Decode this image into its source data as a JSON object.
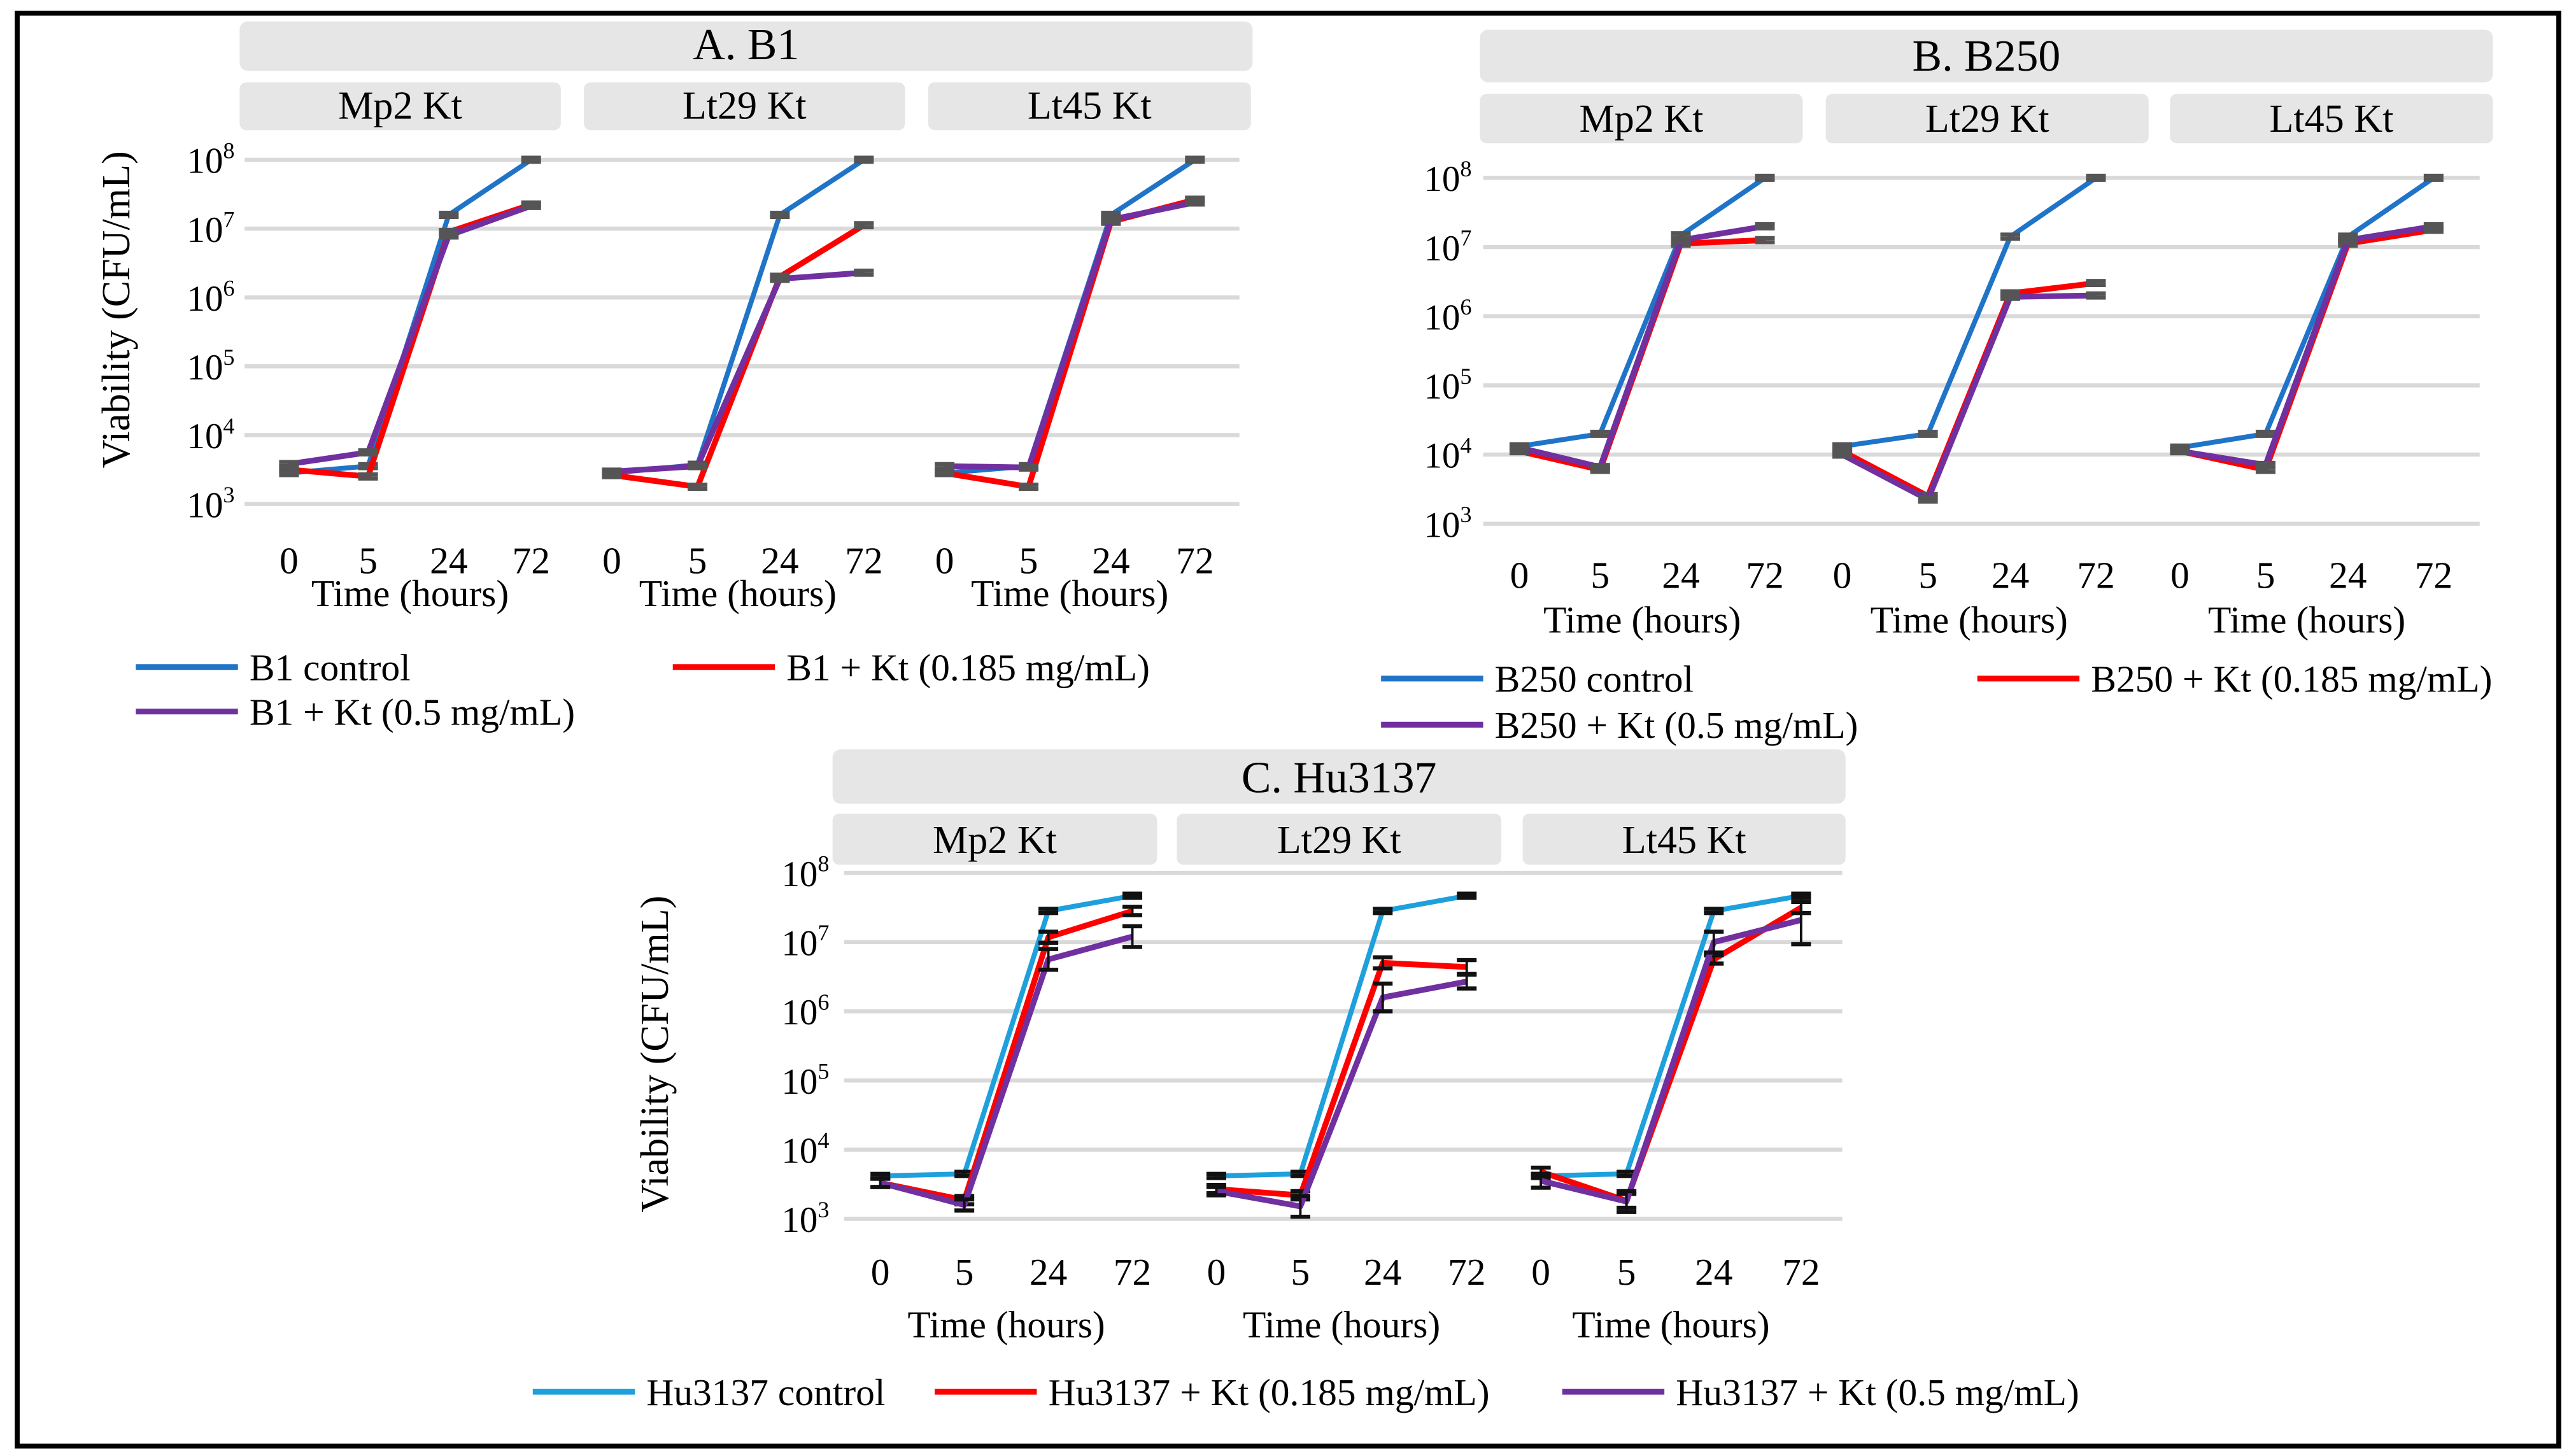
{
  "chart_data": [
    {
      "type": "line",
      "title": "A. B1",
      "ylabel": "Viability (CFU/mL)",
      "xlabel": "Time (hours)",
      "yscale": "log10",
      "ylim_log10": [
        3,
        8
      ],
      "ytick_labels": [
        {
          "base": "10",
          "exp": "3"
        },
        {
          "base": "10",
          "exp": "4"
        },
        {
          "base": "10",
          "exp": "5"
        },
        {
          "base": "10",
          "exp": "6"
        },
        {
          "base": "10",
          "exp": "7"
        },
        {
          "base": "10",
          "exp": "8"
        }
      ],
      "categories": [
        "0",
        "5",
        "24",
        "72"
      ],
      "grid": true,
      "legend": {
        "placement": "bottom",
        "labels": [
          "B1 control",
          "B1 + Kt (0.185 mg/mL)",
          "B1 + Kt (0.5 mg/mL)"
        ]
      },
      "facets": [
        {
          "label": "Mp2 Kt",
          "series": [
            {
              "name": "B1 control",
              "color": "#1f74c8",
              "log10_values": [
                3.45,
                3.55,
                7.2,
                8.0
              ]
            },
            {
              "name": "B1 + Kt (0.185 mg/mL)",
              "color": "#ff0000",
              "log10_values": [
                3.5,
                3.4,
                6.95,
                7.35
              ]
            },
            {
              "name": "B1 + Kt (0.5 mg/mL)",
              "color": "#7030a0",
              "log10_values": [
                3.58,
                3.75,
                6.9,
                7.33
              ]
            }
          ]
        },
        {
          "label": "Lt29 Kt",
          "series": [
            {
              "name": "B1 control",
              "color": "#1f74c8",
              "log10_values": [
                3.45,
                3.57,
                7.2,
                8.0
              ]
            },
            {
              "name": "B1 + Kt (0.185 mg/mL)",
              "color": "#ff0000",
              "log10_values": [
                3.42,
                3.25,
                6.3,
                7.05
              ]
            },
            {
              "name": "B1 + Kt (0.5 mg/mL)",
              "color": "#7030a0",
              "log10_values": [
                3.47,
                3.55,
                6.27,
                6.36
              ]
            }
          ]
        },
        {
          "label": "Lt45 Kt",
          "series": [
            {
              "name": "B1 control",
              "color": "#1f74c8",
              "log10_values": [
                3.45,
                3.55,
                7.2,
                8.0
              ]
            },
            {
              "name": "B1 + Kt (0.185 mg/mL)",
              "color": "#ff0000",
              "log10_values": [
                3.45,
                3.25,
                7.1,
                7.42
              ]
            },
            {
              "name": "B1 + Kt (0.5 mg/mL)",
              "color": "#7030a0",
              "log10_values": [
                3.55,
                3.53,
                7.13,
                7.38
              ]
            }
          ]
        }
      ]
    },
    {
      "type": "line",
      "title": "B. B250",
      "xlabel": "Time (hours)",
      "yscale": "log10",
      "ylim_log10": [
        3,
        8
      ],
      "ytick_labels": [
        {
          "base": "10",
          "exp": "3"
        },
        {
          "base": "10",
          "exp": "4"
        },
        {
          "base": "10",
          "exp": "5"
        },
        {
          "base": "10",
          "exp": "6"
        },
        {
          "base": "10",
          "exp": "7"
        },
        {
          "base": "10",
          "exp": "8"
        }
      ],
      "categories": [
        "0",
        "5",
        "24",
        "72"
      ],
      "grid": true,
      "legend": {
        "placement": "bottom",
        "labels": [
          "B250 control",
          "B250 + Kt (0.185 mg/mL)",
          "B250 + Kt (0.5 mg/mL)"
        ]
      },
      "facets": [
        {
          "label": "Mp2 Kt",
          "series": [
            {
              "name": "B250 control",
              "color": "#1f74c8",
              "log10_values": [
                4.12,
                4.3,
                7.17,
                8.0
              ]
            },
            {
              "name": "B250 + Kt (0.185 mg/mL)",
              "color": "#ff0000",
              "log10_values": [
                4.05,
                3.78,
                7.05,
                7.1
              ]
            },
            {
              "name": "B250 + Kt (0.5 mg/mL)",
              "color": "#7030a0",
              "log10_values": [
                4.1,
                3.82,
                7.1,
                7.3
              ]
            }
          ]
        },
        {
          "label": "Lt29 Kt",
          "series": [
            {
              "name": "B250 control",
              "color": "#1f74c8",
              "log10_values": [
                4.12,
                4.3,
                7.15,
                8.0
              ]
            },
            {
              "name": "B250 + Kt (0.185 mg/mL)",
              "color": "#ff0000",
              "log10_values": [
                4.05,
                3.4,
                6.33,
                6.48
              ]
            },
            {
              "name": "B250 + Kt (0.5 mg/mL)",
              "color": "#7030a0",
              "log10_values": [
                4.0,
                3.35,
                6.28,
                6.3
              ]
            }
          ]
        },
        {
          "label": "Lt45 Kt",
          "series": [
            {
              "name": "B250 control",
              "color": "#1f74c8",
              "log10_values": [
                4.1,
                4.3,
                7.15,
                8.0
              ]
            },
            {
              "name": "B250 + Kt (0.185 mg/mL)",
              "color": "#ff0000",
              "log10_values": [
                4.05,
                3.78,
                7.05,
                7.25
              ]
            },
            {
              "name": "B250 + Kt (0.5 mg/mL)",
              "color": "#7030a0",
              "log10_values": [
                4.05,
                3.85,
                7.1,
                7.3
              ]
            }
          ]
        }
      ]
    },
    {
      "type": "line",
      "title": "C. Hu3137",
      "ylabel": "Viability (CFU/mL)",
      "xlabel": "Time (hours)",
      "yscale": "log10",
      "ylim_log10": [
        3,
        8
      ],
      "ytick_labels": [
        {
          "base": "10",
          "exp": "3"
        },
        {
          "base": "10",
          "exp": "4"
        },
        {
          "base": "10",
          "exp": "5"
        },
        {
          "base": "10",
          "exp": "6"
        },
        {
          "base": "10",
          "exp": "7"
        },
        {
          "base": "10",
          "exp": "8"
        }
      ],
      "categories": [
        "0",
        "5",
        "24",
        "72"
      ],
      "grid": true,
      "legend": {
        "placement": "bottom",
        "labels": [
          "Hu3137 control",
          "Hu3137 + Kt (0.185 mg/mL)",
          "Hu3137 + Kt (0.5 mg/mL)"
        ]
      },
      "facets": [
        {
          "label": "Mp2 Kt",
          "series": [
            {
              "name": "Hu3137 control",
              "color": "#1ea0dc",
              "log10_values": [
                3.62,
                3.65,
                7.45,
                7.67
              ]
            },
            {
              "name": "Hu3137 + Kt (0.185 mg/mL)",
              "color": "#ff0000",
              "log10_values": [
                3.52,
                3.27,
                7.07,
                7.45
              ],
              "log10_err": [
                0.06,
                0.06,
                0.08,
                0.06
              ]
            },
            {
              "name": "Hu3137 + Kt (0.5 mg/mL)",
              "color": "#7030a0",
              "log10_values": [
                3.52,
                3.2,
                6.75,
                7.08
              ],
              "log10_err": [
                0.06,
                0.08,
                0.15,
                0.15
              ]
            }
          ]
        },
        {
          "label": "Lt29 Kt",
          "series": [
            {
              "name": "Hu3137 control",
              "color": "#1ea0dc",
              "log10_values": [
                3.62,
                3.65,
                7.45,
                7.67
              ]
            },
            {
              "name": "Hu3137 + Kt (0.185 mg/mL)",
              "color": "#ff0000",
              "log10_values": [
                3.43,
                3.34,
                6.7,
                6.64
              ],
              "log10_err": [
                0.06,
                0.06,
                0.08,
                0.1
              ]
            },
            {
              "name": "Hu3137 + Kt (0.5 mg/mL)",
              "color": "#7030a0",
              "log10_values": [
                3.4,
                3.18,
                6.2,
                6.43
              ],
              "log10_err": [
                0.06,
                0.15,
                0.2,
                0.1
              ]
            }
          ]
        },
        {
          "label": "Lt45 Kt",
          "series": [
            {
              "name": "Hu3137 control",
              "color": "#1ea0dc",
              "log10_values": [
                3.62,
                3.65,
                7.45,
                7.67
              ]
            },
            {
              "name": "Hu3137 + Kt (0.185 mg/mL)",
              "color": "#ff0000",
              "log10_values": [
                3.68,
                3.26,
                6.75,
                7.5
              ],
              "log10_err": [
                0.06,
                0.1,
                0.06,
                0.08
              ]
            },
            {
              "name": "Hu3137 + Kt (0.5 mg/mL)",
              "color": "#7030a0",
              "log10_values": [
                3.55,
                3.25,
                7.0,
                7.32
              ],
              "log10_err": [
                0.1,
                0.15,
                0.15,
                0.35
              ]
            }
          ]
        }
      ]
    }
  ]
}
